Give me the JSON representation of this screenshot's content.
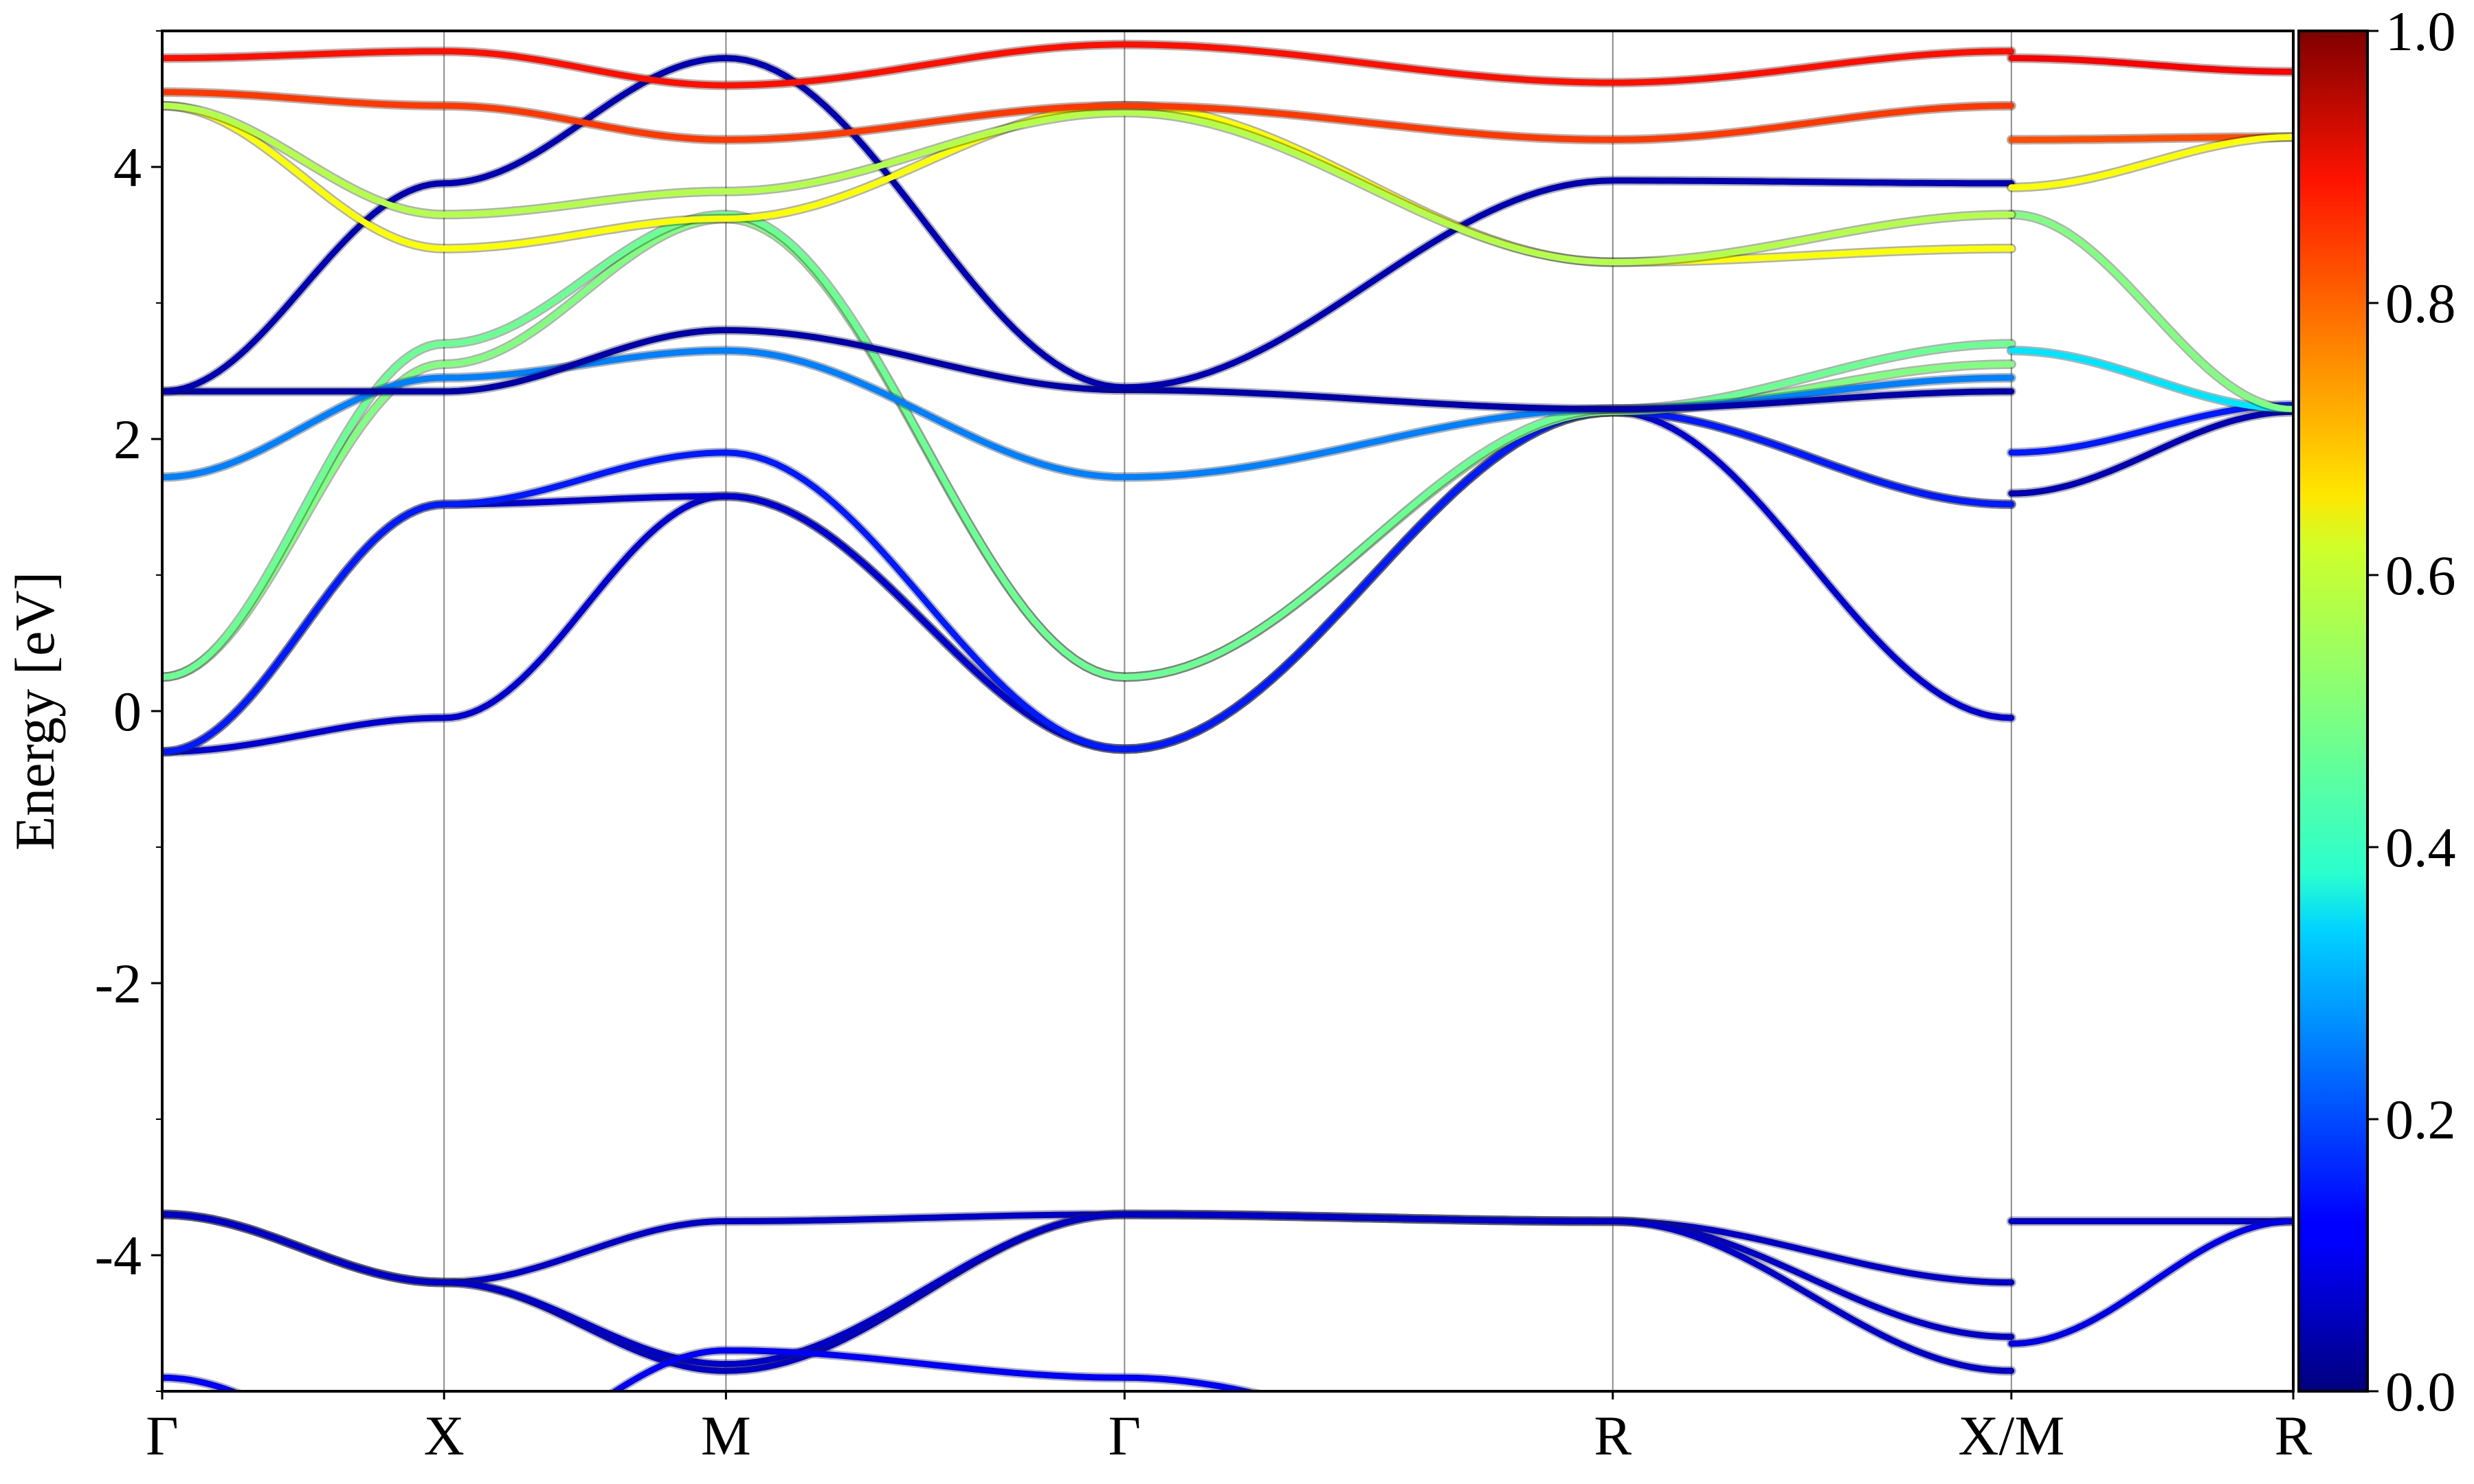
{
  "chart_data": {
    "type": "line",
    "title": "",
    "xlabel": "",
    "ylabel": "Energy [eV]",
    "ylim": [
      -5,
      5
    ],
    "y_ticks": [
      -4,
      -2,
      0,
      2,
      4
    ],
    "y_tick_labels": [
      "-4",
      "-2",
      "0",
      "2",
      "4"
    ],
    "k_path": [
      {
        "label": "Γ",
        "k": 0.0
      },
      {
        "label": "X",
        "k": 1.0
      },
      {
        "label": "M",
        "k": 2.0
      },
      {
        "label": "Γ",
        "k": 3.414
      },
      {
        "label": "R",
        "k": 5.146
      },
      {
        "label": "X/M",
        "k": 6.56
      },
      {
        "label": "R",
        "k": 7.56
      }
    ],
    "grid": "vertical lines at high-symmetry points",
    "colormap": {
      "name": "jet",
      "range": [
        0.0,
        1.0
      ],
      "ticks": [
        0.0,
        0.2,
        0.4,
        0.6,
        0.8,
        1.0
      ],
      "tick_labels": [
        "0.0",
        "0.2",
        "0.4",
        "0.6",
        "0.8",
        "1.0"
      ]
    },
    "series": [
      {
        "points": [
          [
            0,
            -0.3
          ],
          [
            1,
            -0.05
          ],
          [
            2,
            1.58
          ],
          [
            3.414,
            -0.28
          ],
          [
            5.146,
            2.2
          ],
          [
            6.56,
            1.52
          ]
        ],
        "weight": 0.08
      },
      {
        "points": [
          [
            0,
            -0.3
          ],
          [
            1,
            1.52
          ],
          [
            2,
            1.58
          ],
          [
            3.414,
            -0.28
          ],
          [
            5.146,
            2.2
          ],
          [
            6.56,
            -0.05
          ]
        ],
        "weight": 0.08
      },
      {
        "points": [
          [
            0,
            -0.3
          ],
          [
            1,
            1.52
          ],
          [
            2,
            1.9
          ],
          [
            3.414,
            -0.28
          ],
          [
            5.146,
            2.2
          ],
          [
            6.56,
            1.52
          ]
        ],
        "weight": 0.15
      },
      {
        "points": [
          [
            6.56,
            1.6
          ],
          [
            7.56,
            2.2
          ]
        ],
        "weight": 0.05
      },
      {
        "points": [
          [
            6.56,
            1.9
          ],
          [
            7.56,
            2.25
          ]
        ],
        "weight": 0.15
      },
      {
        "points": [
          [
            0,
            0.25
          ],
          [
            1,
            2.55
          ],
          [
            2,
            3.62
          ],
          [
            3.414,
            0.25
          ],
          [
            5.146,
            2.2
          ],
          [
            6.56,
            2.55
          ]
        ],
        "weight": 0.5
      },
      {
        "points": [
          [
            0,
            0.25
          ],
          [
            1,
            2.7
          ],
          [
            2,
            3.65
          ],
          [
            3.414,
            0.25
          ],
          [
            5.146,
            2.22
          ],
          [
            6.56,
            2.7
          ]
        ],
        "weight": 0.48
      },
      {
        "points": [
          [
            0,
            1.72
          ],
          [
            1,
            2.45
          ],
          [
            2,
            2.65
          ],
          [
            3.414,
            1.72
          ],
          [
            5.146,
            2.22
          ],
          [
            6.56,
            2.45
          ]
        ],
        "weight": 0.25
      },
      {
        "points": [
          [
            0,
            2.35
          ],
          [
            1,
            2.35
          ],
          [
            2,
            2.8
          ],
          [
            3.414,
            2.36
          ],
          [
            5.146,
            2.22
          ],
          [
            6.56,
            2.35
          ]
        ],
        "weight": 0.04
      },
      {
        "points": [
          [
            6.56,
            2.65
          ],
          [
            7.56,
            2.22
          ]
        ],
        "weight": 0.35
      },
      {
        "points": [
          [
            6.56,
            3.65
          ],
          [
            7.56,
            2.22
          ]
        ],
        "weight": 0.5
      },
      {
        "points": [
          [
            0,
            2.35
          ],
          [
            1,
            3.88
          ],
          [
            2,
            4.8
          ],
          [
            3.414,
            2.38
          ],
          [
            5.146,
            3.9
          ],
          [
            6.56,
            3.88
          ]
        ],
        "weight": 0.05
      },
      {
        "points": [
          [
            0,
            4.45
          ],
          [
            1,
            3.4
          ],
          [
            2,
            3.62
          ],
          [
            3.414,
            4.45
          ],
          [
            5.146,
            3.3
          ],
          [
            6.56,
            3.4
          ]
        ],
        "weight": 0.62
      },
      {
        "points": [
          [
            0,
            4.45
          ],
          [
            1,
            3.65
          ],
          [
            2,
            3.82
          ],
          [
            3.414,
            4.4
          ],
          [
            5.146,
            3.3
          ],
          [
            6.56,
            3.65
          ]
        ],
        "weight": 0.55
      },
      {
        "points": [
          [
            0,
            4.55
          ],
          [
            1,
            4.45
          ],
          [
            2,
            4.2
          ],
          [
            3.414,
            4.45
          ],
          [
            5.146,
            4.2
          ],
          [
            6.56,
            4.45
          ]
        ],
        "weight": 0.82
      },
      {
        "points": [
          [
            0,
            4.8
          ],
          [
            1,
            4.85
          ],
          [
            2,
            4.6
          ],
          [
            3.414,
            4.9
          ],
          [
            5.146,
            4.62
          ],
          [
            6.56,
            4.85
          ]
        ],
        "weight": 0.86
      },
      {
        "points": [
          [
            6.56,
            4.2
          ],
          [
            7.56,
            4.22
          ]
        ],
        "weight": 0.8
      },
      {
        "points": [
          [
            6.56,
            4.8
          ],
          [
            7.56,
            4.7
          ]
        ],
        "weight": 0.88
      },
      {
        "points": [
          [
            6.56,
            3.85
          ],
          [
            7.56,
            4.22
          ]
        ],
        "weight": 0.62
      },
      {
        "points": [
          [
            0,
            -3.7
          ],
          [
            1,
            -4.2
          ],
          [
            2,
            -3.75
          ],
          [
            3.414,
            -3.7
          ],
          [
            5.146,
            -3.75
          ],
          [
            6.56,
            -4.2
          ]
        ],
        "weight": 0.07
      },
      {
        "points": [
          [
            0,
            -3.7
          ],
          [
            1,
            -4.2
          ],
          [
            2,
            -4.85
          ],
          [
            3.414,
            -3.7
          ],
          [
            5.146,
            -3.75
          ],
          [
            6.56,
            -4.6
          ]
        ],
        "weight": 0.07
      },
      {
        "points": [
          [
            0,
            -3.7
          ],
          [
            1,
            -4.2
          ],
          [
            2,
            -4.8
          ],
          [
            3.414,
            -3.7
          ],
          [
            5.146,
            -3.75
          ],
          [
            6.56,
            -4.85
          ]
        ],
        "weight": 0.07
      },
      {
        "points": [
          [
            6.56,
            -3.75
          ],
          [
            7.56,
            -3.75
          ]
        ],
        "weight": 0.07
      },
      {
        "points": [
          [
            6.56,
            -4.65
          ],
          [
            7.56,
            -3.75
          ]
        ],
        "weight": 0.1
      },
      {
        "points": [
          [
            0,
            -4.9
          ],
          [
            1,
            -5.6
          ],
          [
            2,
            -4.7
          ],
          [
            3.414,
            -4.9
          ],
          [
            5.146,
            -5.6
          ],
          [
            6.56,
            -5.6
          ]
        ],
        "weight": 0.12
      }
    ]
  }
}
